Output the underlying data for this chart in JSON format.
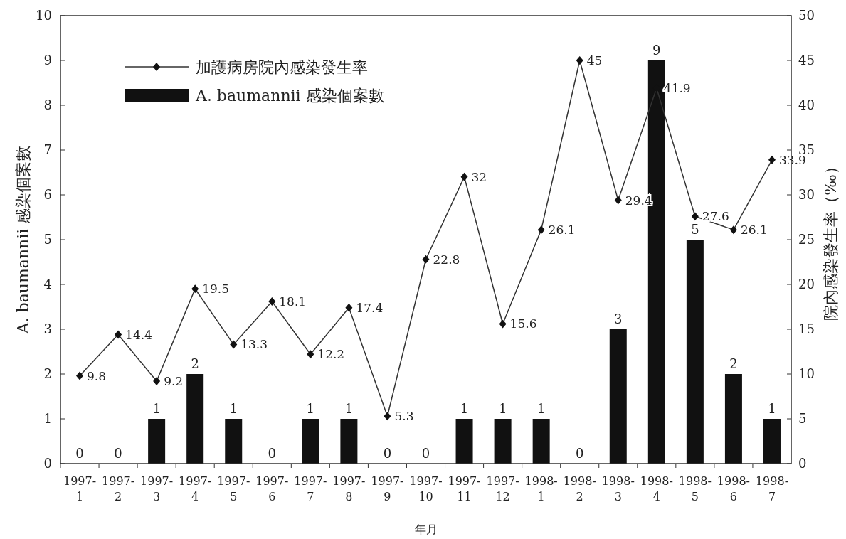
{
  "chart_data": {
    "type": "bar",
    "xlabel": "年月",
    "ylabel": "A. baumannii 感染個案數",
    "y2label": "院內感染發生率（‰）",
    "categories": [
      "1997-\n1",
      "1997-\n2",
      "1997-\n3",
      "1997-\n4",
      "1997-\n5",
      "1997-\n6",
      "1997-\n7",
      "1997-\n8",
      "1997-\n9",
      "1997-\n10",
      "1997-\n11",
      "1997-\n12",
      "1998-\n1",
      "1998-\n2",
      "1998-\n3",
      "1998-\n4",
      "1998-\n5",
      "1998-\n6",
      "1998-\n7"
    ],
    "series": [
      {
        "name": "加護病房院內感染發生率",
        "type": "line",
        "axis": "y2",
        "color": "#333333",
        "values": [
          9.8,
          14.4,
          9.2,
          19.5,
          13.3,
          18.1,
          12.2,
          17.4,
          5.3,
          22.8,
          32,
          15.6,
          26.1,
          45,
          29.4,
          41.9,
          27.6,
          26.1,
          33.9
        ]
      },
      {
        "name": "A. baumannii 感染個案數",
        "color": "#111111",
        "values": [
          0,
          0,
          1,
          2,
          1,
          0,
          1,
          1,
          0,
          0,
          1,
          1,
          1,
          0,
          3,
          9,
          5,
          2,
          1
        ]
      }
    ],
    "ylim": [
      0,
      10
    ],
    "yticks": [
      0,
      1,
      2,
      3,
      4,
      5,
      6,
      7,
      8,
      9,
      10
    ],
    "y2lim": [
      0,
      50
    ],
    "y2ticks": [
      0,
      5,
      10,
      15,
      20,
      25,
      30,
      35,
      40,
      45,
      50
    ],
    "marker": "diamond",
    "line_style": "solid",
    "legend": "top left",
    "data_labels": true,
    "grid": false
  }
}
